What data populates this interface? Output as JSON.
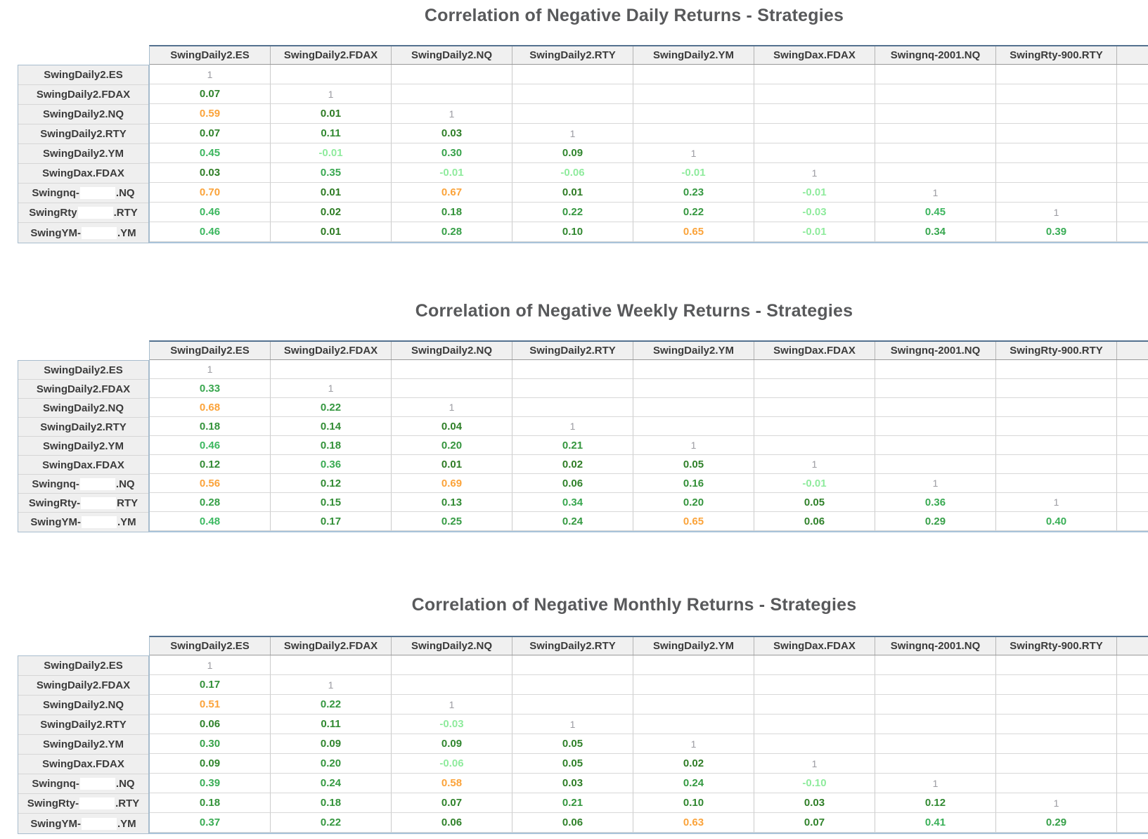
{
  "colors": {
    "diagonal": "#9b9ba1",
    "negative": "#8feb9d",
    "high_orange": "#fba33a",
    "green_low": "#2e7a23",
    "green_high": "#3dbc64",
    "header_text": "#3b3b3b",
    "title_text": "#58595b",
    "header_bg": "#f0f0f0",
    "high_threshold": 0.5
  },
  "chart_data": [
    {
      "type": "heatmap",
      "title": "Correlation of Negative Daily Returns - Strategies",
      "columns": [
        "SwingDaily2.ES",
        "SwingDaily2.FDAX",
        "SwingDaily2.NQ",
        "SwingDaily2.RTY",
        "SwingDaily2.YM",
        "SwingDax.FDAX",
        "Swingnq-2001.NQ",
        "SwingRty-900.RTY"
      ],
      "rows": [
        {
          "label_prefix": "SwingDaily2.ES",
          "label_redacted": false,
          "label_suffix": "",
          "values": [
            "1"
          ]
        },
        {
          "label_prefix": "SwingDaily2.FDAX",
          "label_redacted": false,
          "label_suffix": "",
          "values": [
            "0.07",
            "1"
          ]
        },
        {
          "label_prefix": "SwingDaily2.NQ",
          "label_redacted": false,
          "label_suffix": "",
          "values": [
            "0.59",
            "0.01",
            "1"
          ]
        },
        {
          "label_prefix": "SwingDaily2.RTY",
          "label_redacted": false,
          "label_suffix": "",
          "values": [
            "0.07",
            "0.11",
            "0.03",
            "1"
          ]
        },
        {
          "label_prefix": "SwingDaily2.YM",
          "label_redacted": false,
          "label_suffix": "",
          "values": [
            "0.45",
            "-0.01",
            "0.30",
            "0.09",
            "1"
          ]
        },
        {
          "label_prefix": "SwingDax.FDAX",
          "label_redacted": false,
          "label_suffix": "",
          "values": [
            "0.03",
            "0.35",
            "-0.01",
            "-0.06",
            "-0.01",
            "1"
          ]
        },
        {
          "label_prefix": "Swingnq-",
          "label_redacted": true,
          "label_suffix": ".NQ",
          "values": [
            "0.70",
            "0.01",
            "0.67",
            "0.01",
            "0.23",
            "-0.01",
            "1"
          ]
        },
        {
          "label_prefix": "SwingRty",
          "label_redacted": true,
          "label_suffix": ".RTY",
          "values": [
            "0.46",
            "0.02",
            "0.18",
            "0.22",
            "0.22",
            "-0.03",
            "0.45",
            "1"
          ]
        },
        {
          "label_prefix": "SwingYM-",
          "label_redacted": true,
          "label_suffix": ".YM",
          "values": [
            "0.46",
            "0.01",
            "0.28",
            "0.10",
            "0.65",
            "-0.01",
            "0.34",
            "0.39"
          ]
        }
      ]
    },
    {
      "type": "heatmap",
      "title": "Correlation of Negative Weekly Returns - Strategies",
      "columns": [
        "SwingDaily2.ES",
        "SwingDaily2.FDAX",
        "SwingDaily2.NQ",
        "SwingDaily2.RTY",
        "SwingDaily2.YM",
        "SwingDax.FDAX",
        "Swingnq-2001.NQ",
        "SwingRty-900.RTY"
      ],
      "rows": [
        {
          "label_prefix": "SwingDaily2.ES",
          "label_redacted": false,
          "label_suffix": "",
          "values": [
            "1"
          ]
        },
        {
          "label_prefix": "SwingDaily2.FDAX",
          "label_redacted": false,
          "label_suffix": "",
          "values": [
            "0.33",
            "1"
          ]
        },
        {
          "label_prefix": "SwingDaily2.NQ",
          "label_redacted": false,
          "label_suffix": "",
          "values": [
            "0.68",
            "0.22",
            "1"
          ]
        },
        {
          "label_prefix": "SwingDaily2.RTY",
          "label_redacted": false,
          "label_suffix": "",
          "values": [
            "0.18",
            "0.14",
            "0.04",
            "1"
          ]
        },
        {
          "label_prefix": "SwingDaily2.YM",
          "label_redacted": false,
          "label_suffix": "",
          "values": [
            "0.46",
            "0.18",
            "0.20",
            "0.21",
            "1"
          ]
        },
        {
          "label_prefix": "SwingDax.FDAX",
          "label_redacted": false,
          "label_suffix": "",
          "values": [
            "0.12",
            "0.36",
            "0.01",
            "0.02",
            "0.05",
            "1"
          ]
        },
        {
          "label_prefix": "Swingnq-",
          "label_redacted": true,
          "label_suffix": ".NQ",
          "values": [
            "0.56",
            "0.12",
            "0.69",
            "0.06",
            "0.16",
            "-0.01",
            "1"
          ]
        },
        {
          "label_prefix": "SwingRty-",
          "label_redacted": true,
          "label_suffix": "RTY",
          "values": [
            "0.28",
            "0.15",
            "0.13",
            "0.34",
            "0.20",
            "0.05",
            "0.36",
            "1"
          ]
        },
        {
          "label_prefix": "SwingYM-",
          "label_redacted": true,
          "label_suffix": ".YM",
          "values": [
            "0.48",
            "0.17",
            "0.25",
            "0.24",
            "0.65",
            "0.06",
            "0.29",
            "0.40"
          ]
        }
      ]
    },
    {
      "type": "heatmap",
      "title": "Correlation of Negative Monthly Returns - Strategies",
      "columns": [
        "SwingDaily2.ES",
        "SwingDaily2.FDAX",
        "SwingDaily2.NQ",
        "SwingDaily2.RTY",
        "SwingDaily2.YM",
        "SwingDax.FDAX",
        "Swingnq-2001.NQ",
        "SwingRty-900.RTY"
      ],
      "rows": [
        {
          "label_prefix": "SwingDaily2.ES",
          "label_redacted": false,
          "label_suffix": "",
          "values": [
            "1"
          ]
        },
        {
          "label_prefix": "SwingDaily2.FDAX",
          "label_redacted": false,
          "label_suffix": "",
          "values": [
            "0.17",
            "1"
          ]
        },
        {
          "label_prefix": "SwingDaily2.NQ",
          "label_redacted": false,
          "label_suffix": "",
          "values": [
            "0.51",
            "0.22",
            "1"
          ]
        },
        {
          "label_prefix": "SwingDaily2.RTY",
          "label_redacted": false,
          "label_suffix": "",
          "values": [
            "0.06",
            "0.11",
            "-0.03",
            "1"
          ]
        },
        {
          "label_prefix": "SwingDaily2.YM",
          "label_redacted": false,
          "label_suffix": "",
          "values": [
            "0.30",
            "0.09",
            "0.09",
            "0.05",
            "1"
          ]
        },
        {
          "label_prefix": "SwingDax.FDAX",
          "label_redacted": false,
          "label_suffix": "",
          "values": [
            "0.09",
            "0.20",
            "-0.06",
            "0.05",
            "0.02",
            "1"
          ]
        },
        {
          "label_prefix": "Swingnq-",
          "label_redacted": true,
          "label_suffix": ".NQ",
          "values": [
            "0.39",
            "0.24",
            "0.58",
            "0.03",
            "0.24",
            "-0.10",
            "1"
          ]
        },
        {
          "label_prefix": "SwingRty-",
          "label_redacted": true,
          "label_suffix": ".RTY",
          "values": [
            "0.18",
            "0.18",
            "0.07",
            "0.21",
            "0.10",
            "0.03",
            "0.12",
            "1"
          ]
        },
        {
          "label_prefix": "SwingYM-",
          "label_redacted": true,
          "label_suffix": ".YM",
          "values": [
            "0.37",
            "0.22",
            "0.06",
            "0.06",
            "0.63",
            "0.07",
            "0.41",
            "0.29"
          ]
        }
      ]
    }
  ]
}
